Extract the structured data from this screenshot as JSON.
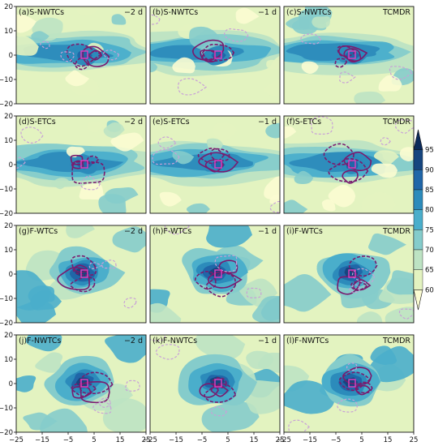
{
  "chart_data": {
    "type": "heatmap",
    "layout": "4x3 panel grid",
    "xlim": [
      -25,
      25
    ],
    "ylim": [
      -20,
      20
    ],
    "x_ticks": [
      "−25",
      "−15",
      "−5",
      "5",
      "15",
      "25"
    ],
    "y_ticks": [
      "20",
      "10",
      "0",
      "−10",
      "−20"
    ],
    "colorbar": {
      "ticks": [
        "95",
        "90",
        "85",
        "80",
        "75",
        "70",
        "65",
        "60"
      ],
      "levels": [
        60,
        65,
        70,
        75,
        80,
        85,
        90,
        95
      ],
      "colors": [
        "#fbfcd2",
        "#e3f3c0",
        "#bde3c3",
        "#85cccb",
        "#4aaecb",
        "#2c8bbb",
        "#2066a8",
        "#16457f",
        "#0b2a5a"
      ],
      "extend": "both"
    },
    "panels": [
      {
        "title": "(a)S-NWTCs",
        "time": "−2 d",
        "pattern": "wide"
      },
      {
        "title": "(b)S-NWTCs",
        "time": "−1 d",
        "pattern": "wide"
      },
      {
        "title": "(c)S-NWTCs",
        "time": "TCMDR",
        "pattern": "wide"
      },
      {
        "title": "(d)S-ETCs",
        "time": "−2 d",
        "pattern": "wide"
      },
      {
        "title": "(e)S-ETCs",
        "time": "−1 d",
        "pattern": "wide"
      },
      {
        "title": "(f)S-ETCs",
        "time": "TCMDR",
        "pattern": "wide"
      },
      {
        "title": "(g)F-WTCs",
        "time": "−2 d",
        "pattern": "core"
      },
      {
        "title": "(h)F-WTCs",
        "time": "−1 d",
        "pattern": "core"
      },
      {
        "title": "(i)F-WTCs",
        "time": "TCMDR",
        "pattern": "core"
      },
      {
        "title": "(j)F-NWTCs",
        "time": "−2 d",
        "pattern": "core"
      },
      {
        "title": "(k)F-NWTCs",
        "time": "−1 d",
        "pattern": "core"
      },
      {
        "title": "(l)F-NWTCs",
        "time": "TCMDR",
        "pattern": "core"
      }
    ],
    "contour_colors": {
      "solid": "#7a1a6e",
      "dashed_light": "#c8a0d8",
      "center_marker": "#e040c0"
    }
  }
}
